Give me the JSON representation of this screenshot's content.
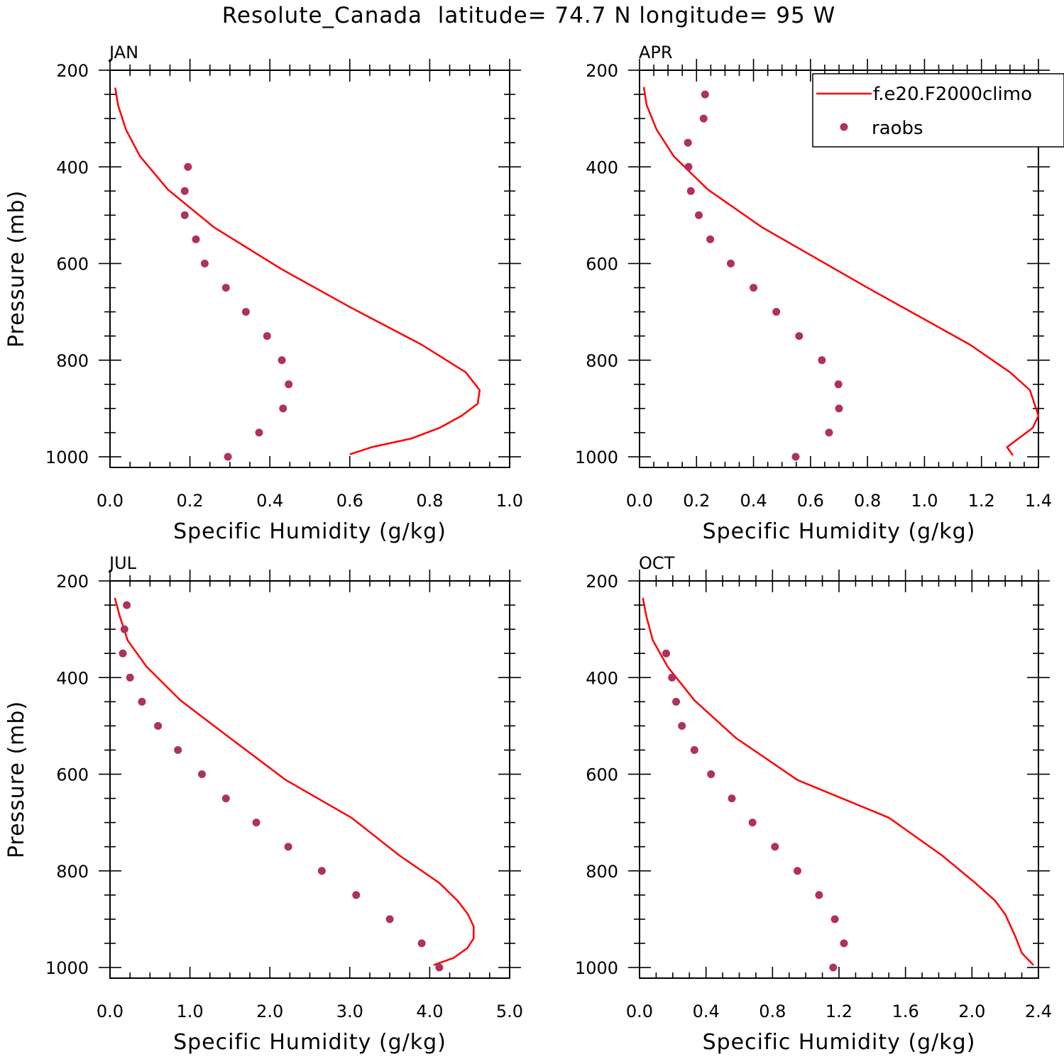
{
  "figure": {
    "title": "Resolute_Canada  latitude= 74.7 N longitude= 95 W",
    "colors": {
      "model": "#ff0000",
      "obs": "#b0305f",
      "axes": "#000000"
    }
  },
  "legend": {
    "model_label": "f.e20.F2000climo",
    "obs_label": "raobs"
  },
  "chart_data": [
    {
      "type": "line",
      "panel": "JAN",
      "title": "JAN",
      "xlabel": "Specific Humidity (g/kg)",
      "ylabel": "Pressure (mb)",
      "xlim": [
        0,
        1.0
      ],
      "ylim": [
        1000,
        200
      ],
      "xticks": [
        "0.0",
        "0.2",
        "0.4",
        "0.6",
        "0.8",
        "1.0"
      ],
      "yticks": [
        "200",
        "400",
        "600",
        "800",
        "1000"
      ],
      "series": [
        {
          "name": "f.e20.F2000climo",
          "style": "line",
          "x": [
            0.013,
            0.02,
            0.04,
            0.075,
            0.145,
            0.26,
            0.43,
            0.6,
            0.78,
            0.89,
            0.925,
            0.92,
            0.88,
            0.825,
            0.755,
            0.655,
            0.6
          ],
          "y": [
            236,
            272,
            323,
            378,
            447,
            525,
            612,
            690,
            768,
            825,
            862,
            890,
            915,
            940,
            962,
            980,
            995
          ]
        },
        {
          "name": "raobs",
          "style": "dots",
          "x": [
            0.195,
            0.187,
            0.187,
            0.215,
            0.237,
            0.29,
            0.34,
            0.393,
            0.43,
            0.447,
            0.433,
            0.373,
            0.295
          ],
          "y": [
            400,
            450,
            500,
            550,
            600,
            650,
            700,
            750,
            800,
            850,
            900,
            950,
            1000
          ]
        }
      ]
    },
    {
      "type": "line",
      "panel": "APR",
      "title": "APR",
      "xlabel": "Specific Humidity (g/kg)",
      "ylabel": "",
      "xlim": [
        0,
        1.4
      ],
      "ylim": [
        1000,
        200
      ],
      "xticks": [
        "0.0",
        "0.2",
        "0.4",
        "0.6",
        "0.8",
        "1.0",
        "1.2",
        "1.4"
      ],
      "yticks": [
        "200",
        "400",
        "600",
        "800",
        "1000"
      ],
      "series": [
        {
          "name": "f.e20.F2000climo",
          "style": "line",
          "x": [
            0.015,
            0.025,
            0.06,
            0.12,
            0.24,
            0.43,
            0.8,
            1.16,
            1.3,
            1.37,
            1.4,
            1.38,
            1.29,
            1.31
          ],
          "y": [
            235,
            272,
            323,
            378,
            447,
            525,
            650,
            768,
            825,
            862,
            915,
            940,
            980,
            997
          ]
        },
        {
          "name": "raobs",
          "style": "dots",
          "x": [
            0.23,
            0.225,
            0.17,
            0.172,
            0.18,
            0.208,
            0.248,
            0.32,
            0.4,
            0.48,
            0.56,
            0.64,
            0.698,
            0.7,
            0.665,
            0.548
          ],
          "y": [
            250,
            300,
            350,
            400,
            450,
            500,
            550,
            600,
            650,
            700,
            750,
            800,
            850,
            900,
            950,
            1000
          ]
        }
      ]
    },
    {
      "type": "line",
      "panel": "JUL",
      "title": "JUL",
      "xlabel": "Specific Humidity (g/kg)",
      "ylabel": "Pressure (mb)",
      "xlim": [
        0,
        5.0
      ],
      "ylim": [
        1000,
        200
      ],
      "xticks": [
        "0.0",
        "1.0",
        "2.0",
        "3.0",
        "4.0",
        "5.0"
      ],
      "yticks": [
        "200",
        "400",
        "600",
        "800",
        "1000"
      ],
      "series": [
        {
          "name": "f.e20.F2000climo",
          "style": "line",
          "x": [
            0.06,
            0.12,
            0.22,
            0.46,
            0.88,
            1.5,
            2.2,
            3.02,
            3.62,
            4.12,
            4.35,
            4.48,
            4.55,
            4.55,
            4.47,
            4.3,
            4.05
          ],
          "y": [
            235,
            272,
            323,
            378,
            447,
            525,
            612,
            690,
            768,
            825,
            862,
            890,
            915,
            940,
            960,
            980,
            995
          ]
        },
        {
          "name": "raobs",
          "style": "dots",
          "x": [
            0.21,
            0.18,
            0.16,
            0.25,
            0.4,
            0.6,
            0.85,
            1.15,
            1.45,
            1.83,
            2.23,
            2.65,
            3.08,
            3.5,
            3.9,
            4.12
          ],
          "y": [
            250,
            300,
            350,
            400,
            450,
            500,
            550,
            600,
            650,
            700,
            750,
            800,
            850,
            900,
            950,
            1000
          ]
        }
      ]
    },
    {
      "type": "line",
      "panel": "OCT",
      "title": "OCT",
      "xlabel": "Specific Humidity (g/kg)",
      "ylabel": "",
      "xlim": [
        0,
        2.4
      ],
      "ylim": [
        1000,
        200
      ],
      "xticks": [
        "0.0",
        "0.4",
        "0.8",
        "1.2",
        "1.6",
        "2.0",
        "2.4"
      ],
      "yticks": [
        "200",
        "400",
        "600",
        "800",
        "1000"
      ],
      "series": [
        {
          "name": "f.e20.F2000climo",
          "style": "line",
          "x": [
            0.02,
            0.04,
            0.08,
            0.17,
            0.33,
            0.58,
            0.95,
            1.5,
            1.82,
            2.02,
            2.14,
            2.2,
            2.26,
            2.3,
            2.37
          ],
          "y": [
            235,
            272,
            323,
            378,
            447,
            525,
            612,
            690,
            768,
            825,
            862,
            890,
            935,
            970,
            995
          ]
        },
        {
          "name": "raobs",
          "style": "dots",
          "x": [
            0.16,
            0.195,
            0.22,
            0.255,
            0.33,
            0.43,
            0.555,
            0.68,
            0.815,
            0.95,
            1.08,
            1.175,
            1.23,
            1.165
          ],
          "y": [
            350,
            400,
            450,
            500,
            550,
            600,
            650,
            700,
            750,
            800,
            850,
            900,
            950,
            1000
          ]
        }
      ]
    }
  ]
}
